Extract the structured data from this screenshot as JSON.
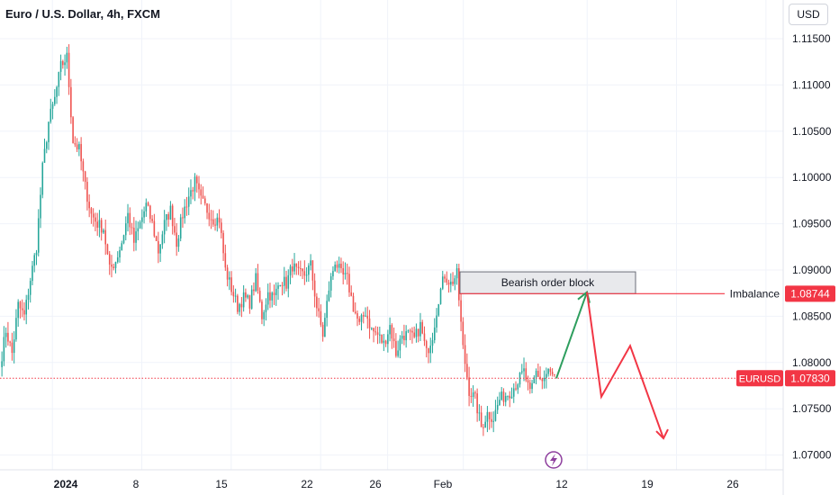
{
  "header": {
    "title": "Euro / U.S. Dollar, 4h, FXCM",
    "currency": "USD"
  },
  "colors": {
    "up": "#26a69a",
    "down": "#ef5350",
    "grid": "#f0f3fa",
    "text": "#131722",
    "label_red": "#f23645"
  },
  "chart_data": {
    "type": "candlestick",
    "title": "Euro / U.S. Dollar, 4h, FXCM",
    "symbol": "EURUSD",
    "ylim": [
      1.0675,
      1.1175
    ],
    "y_ticks": [
      "1.11500",
      "1.11000",
      "1.10500",
      "1.10000",
      "1.09500",
      "1.09000",
      "1.08500",
      "1.08000",
      "1.07500",
      "1.07000"
    ],
    "x_ticks": [
      {
        "label": "2024",
        "pos": 2.0,
        "bold": true
      },
      {
        "label": "8",
        "pos": 7.2
      },
      {
        "label": "15",
        "pos": 12.4
      },
      {
        "label": "22",
        "pos": 17.6
      },
      {
        "label": "26",
        "pos": 21.5
      },
      {
        "label": "Feb",
        "pos": 25.9
      },
      {
        "label": "12",
        "pos": 33.1
      },
      {
        "label": "19",
        "pos": 38.3
      },
      {
        "label": "26",
        "pos": 43.5
      }
    ],
    "current_price": {
      "label": "EURUSD",
      "value": "1.07830",
      "y": 1.0783
    },
    "imbalance": {
      "label": "Imbalance",
      "value": "1.08744",
      "y": 1.08744
    },
    "order_block": {
      "label": "Bearish order block",
      "x_start": 26.9,
      "x_end": 37.6,
      "y_low": 1.08744,
      "y_high": 1.0898
    },
    "projection": [
      {
        "x": 32.8,
        "y": 1.0783
      },
      {
        "x": 34.8,
        "y": 1.0876
      },
      {
        "x": 35.5,
        "y": 1.0763
      },
      {
        "x": 37.3,
        "y": 1.0818
      },
      {
        "x": 38.9,
        "y": 1.0718
      }
    ],
    "segments": [
      [
        1.0795,
        1.0835,
        1.081,
        1.0862,
        1.085,
        1.089,
        1.0925,
        1.101,
        1.106,
        1.1085,
        1.112,
        1.113,
        1.104,
        1.103,
        1.099,
        1.096,
        1.095
      ],
      [
        1.095,
        1.0945,
        1.09,
        1.091,
        1.093,
        1.096,
        1.093,
        1.095,
        1.097,
        1.095,
        1.092,
        1.095,
        1.0965,
        1.093,
        1.096,
        1.098,
        1.0995,
        1.0975,
        1.0965,
        1.0955,
        1.0955
      ],
      [
        1.0955,
        1.09,
        1.088,
        1.086,
        1.087,
        1.0865,
        1.089,
        1.085,
        1.0875,
        1.087,
        1.089,
        1.0885,
        1.0905,
        1.0895,
        1.0895,
        1.0905,
        1.086,
        1.083,
        1.088,
        1.091,
        1.0895,
        1.089,
        1.086,
        1.084,
        1.0855
      ],
      [
        1.0855,
        1.0835,
        1.083,
        1.082,
        1.084,
        1.081,
        1.083,
        1.083,
        1.0825,
        1.084,
        1.081,
        1.083,
        1.087,
        1.0895,
        1.0885,
        1.0895
      ],
      [
        1.0895,
        1.0815,
        1.077,
        1.076,
        1.073,
        1.0745,
        1.074,
        1.076,
        1.0765,
        1.077,
        1.078,
        1.079,
        1.0765,
        1.079,
        1.078,
        1.079,
        1.0783
      ]
    ]
  }
}
